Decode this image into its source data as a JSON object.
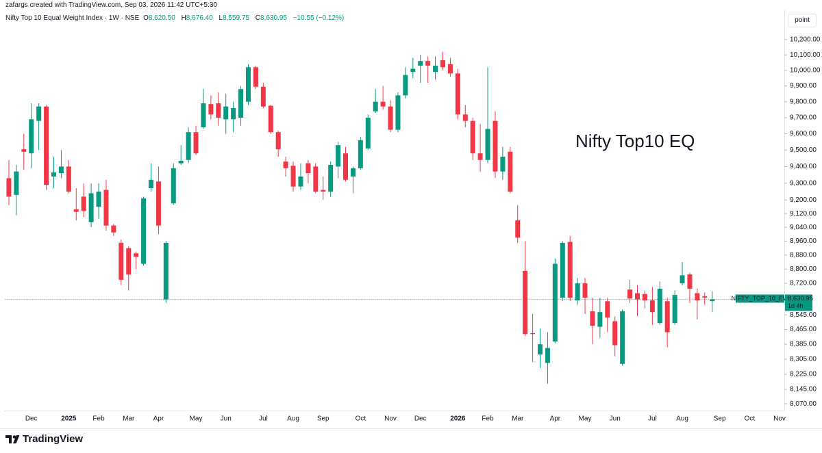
{
  "header": {
    "credit": "zafargs created with TradingView.com, Sep 03, 2026 11:42 UTC+5:30",
    "symbol": "Nifty Top 10 Equal Weight Index · 1W · NSE",
    "ohlc": [
      {
        "key": "O",
        "label": "8,620.50"
      },
      {
        "key": "H",
        "label": "8,676.40"
      },
      {
        "key": "L",
        "label": "8,559.75"
      },
      {
        "key": "C",
        "label": "8,630.95"
      }
    ],
    "change": "−10.55 (−0.12%)"
  },
  "scale_mode": "point",
  "brand": "TradingView",
  "chart_data": {
    "type": "candlestick",
    "annotation": "Nifty Top10 EQ",
    "up_color": "#089981",
    "down_color": "#f23645",
    "log_scale": true,
    "grid": false,
    "ylim": [
      8035,
      10380
    ],
    "yticks": [
      {
        "value": 10200,
        "label": "10,200.00"
      },
      {
        "value": 10100,
        "label": "10,100.00"
      },
      {
        "value": 10000,
        "label": "10,000.00"
      },
      {
        "value": 9900,
        "label": "9,900.00"
      },
      {
        "value": 9800,
        "label": "9,800.00"
      },
      {
        "value": 9700,
        "label": "9,700.00"
      },
      {
        "value": 9600,
        "label": "9,600.00"
      },
      {
        "value": 9500,
        "label": "9,500.00"
      },
      {
        "value": 9400,
        "label": "9,400.00"
      },
      {
        "value": 9300,
        "label": "9,300.00"
      },
      {
        "value": 9200,
        "label": "9,200.00"
      },
      {
        "value": 9120,
        "label": "9,120.00"
      },
      {
        "value": 9040,
        "label": "9,040.00"
      },
      {
        "value": 8960,
        "label": "8,960.00"
      },
      {
        "value": 8880,
        "label": "8,880.00"
      },
      {
        "value": 8800,
        "label": "8,800.00"
      },
      {
        "value": 8720,
        "label": "8,720.00"
      },
      {
        "value": 8545,
        "label": "8,545.00"
      },
      {
        "value": 8465,
        "label": "8,465.00"
      },
      {
        "value": 8385,
        "label": "8,385.00"
      },
      {
        "value": 8305,
        "label": "8,305.00"
      },
      {
        "value": 8225,
        "label": "8,225.00"
      },
      {
        "value": 8145,
        "label": "8,145.00"
      },
      {
        "value": 8070,
        "label": "8,070.00"
      }
    ],
    "price_label": {
      "symbol": "NIFTY_TOP_10_EW",
      "value_label": "8,630.95",
      "countdown": "1d 4h"
    },
    "categories": [
      null,
      null,
      null,
      "Dec",
      null,
      null,
      null,
      null,
      "2025",
      null,
      null,
      null,
      "Feb",
      null,
      null,
      null,
      "Mar",
      null,
      null,
      null,
      "Apr",
      null,
      null,
      null,
      null,
      "May",
      null,
      null,
      null,
      "Jun",
      null,
      null,
      null,
      null,
      "Jul",
      null,
      null,
      null,
      "Aug",
      null,
      null,
      null,
      "Sep",
      null,
      null,
      null,
      null,
      "Oct",
      null,
      null,
      null,
      "Nov",
      null,
      null,
      null,
      "Dec",
      null,
      null,
      null,
      null,
      "2026",
      null,
      null,
      null,
      "Feb",
      null,
      null,
      null,
      "Mar",
      null,
      null,
      null,
      null,
      "Apr",
      null,
      null,
      null,
      "May",
      null,
      null,
      null,
      "Jun",
      null,
      null,
      null,
      null,
      "Jul",
      null,
      null,
      null,
      "Aug",
      null,
      null,
      null,
      null,
      "Sep",
      null,
      null,
      null,
      "Oct",
      null,
      null,
      null,
      "Nov"
    ],
    "open": [
      9330,
      9230,
      9505,
      9480,
      9680,
      9770,
      9340,
      9360,
      9400,
      9145,
      9220,
      9070,
      9160,
      9260,
      9050,
      8950,
      8920,
      8890,
      8830,
      9270,
      9310,
      8630,
      9180,
      9420,
      9440,
      9610,
      9640,
      9785,
      9790,
      9690,
      9690,
      9700,
      9800,
      10020,
      9895,
      9775,
      9610,
      9430,
      9405,
      9280,
      9420,
      9400,
      9260,
      9250,
      9400,
      9480,
      9340,
      9390,
      9510,
      9740,
      9800,
      9770,
      9625,
      9840,
      9990,
      10030,
      10060,
      9990,
      10065,
      10040,
      9980,
      9720,
      9680,
      9480,
      9440,
      9680,
      9370,
      9490,
      9080,
      8790,
      8445,
      8330,
      8285,
      8400,
      8640,
      8955,
      8625,
      8720,
      8565,
      8480,
      8620,
      8510,
      8280,
      8685,
      8665,
      8660,
      8625,
      8500,
      8620,
      8500,
      8720,
      8770,
      8665,
      8648,
      8620.5,
      null,
      null,
      null,
      null,
      null,
      null,
      null,
      null,
      null
    ],
    "high": [
      9440,
      9410,
      9600,
      9790,
      9790,
      9780,
      9460,
      9500,
      9440,
      9270,
      9300,
      9300,
      9300,
      9320,
      9060,
      8970,
      8930,
      8900,
      9220,
      9420,
      9400,
      8960,
      9420,
      9530,
      9640,
      9650,
      9880,
      9840,
      9860,
      9850,
      9800,
      9900,
      10040,
      10030,
      9920,
      9780,
      9620,
      9460,
      9430,
      9420,
      9440,
      9420,
      9340,
      9430,
      9550,
      9520,
      9400,
      9580,
      9720,
      9880,
      9900,
      9810,
      9860,
      10020,
      10080,
      10100,
      10090,
      10090,
      10120,
      10080,
      10010,
      9780,
      9700,
      9660,
      10020,
      9740,
      9520,
      9520,
      9170,
      8960,
      8550,
      8470,
      8450,
      8860,
      8960,
      8990,
      8750,
      8750,
      8640,
      8640,
      8640,
      8535,
      8575,
      8740,
      8710,
      8680,
      8700,
      8730,
      8640,
      8680,
      8840,
      8780,
      8690,
      8670,
      8676.4,
      null,
      null,
      null,
      null,
      null,
      null,
      null,
      null,
      null
    ],
    "low": [
      9170,
      9110,
      9380,
      9390,
      9500,
      9260,
      9270,
      9330,
      9240,
      9080,
      9100,
      9040,
      9090,
      9020,
      8990,
      8710,
      8680,
      8800,
      8820,
      9250,
      9000,
      8610,
      9170,
      9410,
      9420,
      9470,
      9630,
      9690,
      9650,
      9600,
      9610,
      9650,
      9780,
      9880,
      9760,
      9600,
      9460,
      9340,
      9250,
      9260,
      9300,
      9240,
      9200,
      9220,
      9330,
      9310,
      9240,
      9380,
      9500,
      9730,
      9750,
      9610,
      9610,
      9820,
      9950,
      9920,
      9920,
      9940,
      10000,
      9960,
      9690,
      9640,
      9440,
      9370,
      9420,
      9330,
      9320,
      9240,
      8950,
      8430,
      8290,
      8260,
      8175,
      8390,
      8620,
      8620,
      8600,
      8550,
      8385,
      8420,
      8450,
      8320,
      8270,
      8610,
      8540,
      8580,
      8490,
      8490,
      8370,
      8490,
      8710,
      8610,
      8520,
      8600,
      8559.75,
      null,
      null,
      null,
      null,
      null,
      null,
      null,
      null,
      null
    ],
    "close": [
      9220,
      9370,
      9490,
      9690,
      9770,
      9290,
      9365,
      9400,
      9250,
      9130,
      9135,
      9240,
      9250,
      9050,
      9010,
      8740,
      8770,
      8870,
      9210,
      9320,
      9050,
      8950,
      9390,
      9435,
      9610,
      9480,
      9790,
      9720,
      9700,
      9770,
      9760,
      9880,
      10020,
      9895,
      9770,
      9610,
      9505,
      9390,
      9280,
      9340,
      9360,
      9250,
      9250,
      9410,
      9530,
      9320,
      9390,
      9560,
      9700,
      9800,
      9770,
      9625,
      9840,
      9970,
      10010,
      10060,
      10030,
      10030,
      10020,
      9980,
      9720,
      9680,
      9480,
      9440,
      9630,
      9370,
      9460,
      9250,
      8980,
      8440,
      8440,
      8385,
      8365,
      8830,
      8950,
      8640,
      8720,
      8640,
      8485,
      8560,
      8530,
      8380,
      8565,
      8635,
      8630,
      8625,
      8560,
      8690,
      8450,
      8655,
      8765,
      8690,
      8625,
      8641,
      8630.95,
      null,
      null,
      null,
      null,
      null,
      null,
      null,
      null,
      null
    ]
  }
}
